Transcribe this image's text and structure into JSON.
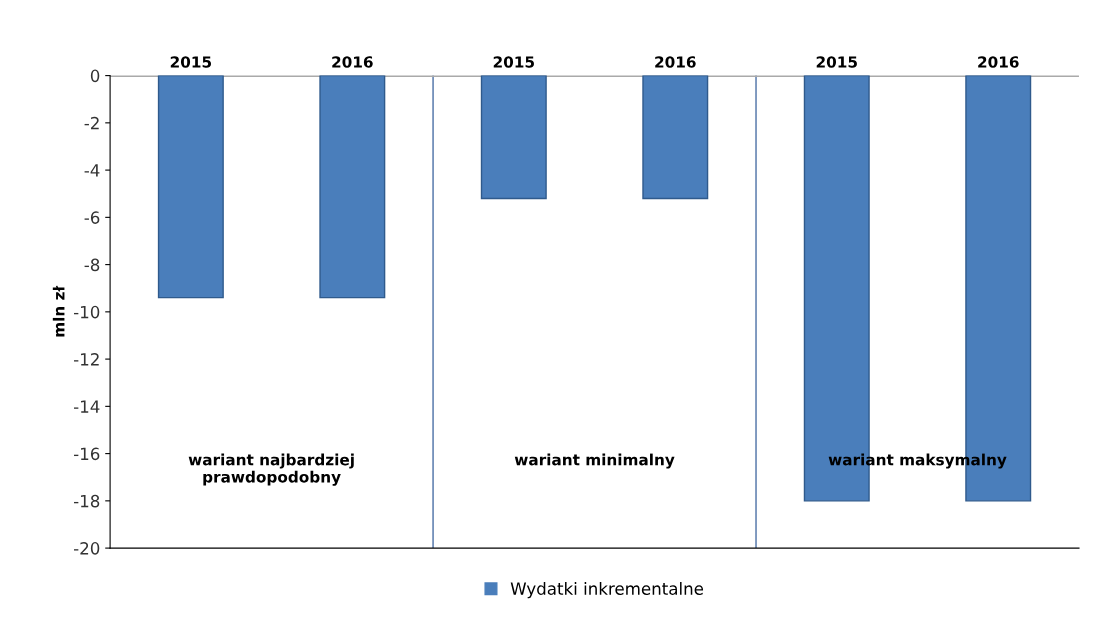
{
  "chart_data": {
    "type": "bar",
    "ylabel": "mln zł",
    "categories": [
      "2015",
      "2016",
      "2015",
      "2016",
      "2015",
      "2016"
    ],
    "series": [
      {
        "name": "Wydatki inkrementalne",
        "color": "#4a7ebb",
        "values": [
          -9.4,
          -9.4,
          -5.2,
          -5.2,
          -18.0,
          -18.0
        ]
      }
    ],
    "ylim": [
      -20,
      0
    ],
    "yticks": [
      -20,
      -18,
      -16,
      -14,
      -12,
      -10,
      -8,
      -6,
      -4,
      -2,
      0
    ],
    "annotations": [
      "wariant najbardziej\nprawdopodobny",
      "wariant minimalny",
      "wariant maksymalny"
    ],
    "grid": false,
    "legend": "bottom"
  }
}
